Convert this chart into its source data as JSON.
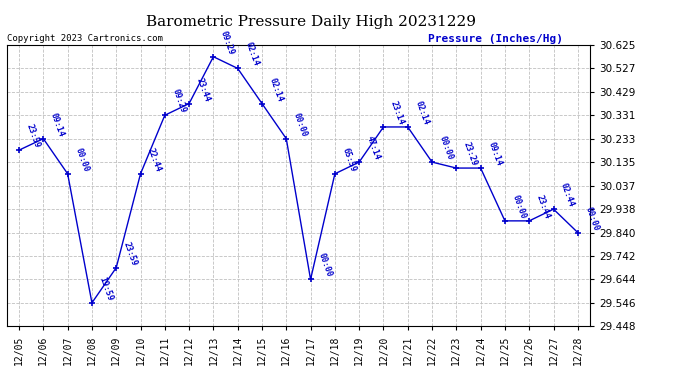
{
  "title": "Barometric Pressure Daily High 20231229",
  "ylabel": "Pressure (Inches/Hg)",
  "copyright": "Copyright 2023 Cartronics.com",
  "line_color": "#0000cc",
  "marker": "+",
  "background_color": "#ffffff",
  "grid_color": "#c0c0c0",
  "label_color": "#0000cc",
  "title_color": "#000000",
  "yticks": [
    30.625,
    30.527,
    30.429,
    30.331,
    30.233,
    30.135,
    30.037,
    29.938,
    29.84,
    29.742,
    29.644,
    29.546,
    29.448
  ],
  "ylim": [
    29.448,
    30.625
  ],
  "dates": [
    "12/05",
    "12/06",
    "12/07",
    "12/08",
    "12/09",
    "12/10",
    "12/11",
    "12/12",
    "12/13",
    "12/14",
    "12/15",
    "12/16",
    "12/17",
    "12/18",
    "12/19",
    "12/20",
    "12/21",
    "12/22",
    "12/23",
    "12/24",
    "12/25",
    "12/26",
    "12/27",
    "12/28"
  ],
  "values": [
    30.185,
    30.233,
    30.086,
    29.546,
    29.693,
    30.086,
    30.331,
    30.38,
    30.576,
    30.527,
    30.38,
    30.233,
    29.644,
    30.086,
    30.135,
    30.282,
    30.282,
    30.135,
    30.11,
    30.11,
    29.889,
    29.889,
    29.938,
    29.84
  ],
  "annotations": [
    "23:59",
    "09:14",
    "00:00",
    "19:59",
    "23:59",
    "22:44",
    "09:29",
    "23:44",
    "09:29",
    "02:14",
    "02:14",
    "00:00",
    "00:00",
    "65:59",
    "47:14",
    "23:14",
    "02:14",
    "00:00",
    "23:29",
    "09:14",
    "00:00",
    "23:44",
    "02:44",
    "00:00"
  ]
}
